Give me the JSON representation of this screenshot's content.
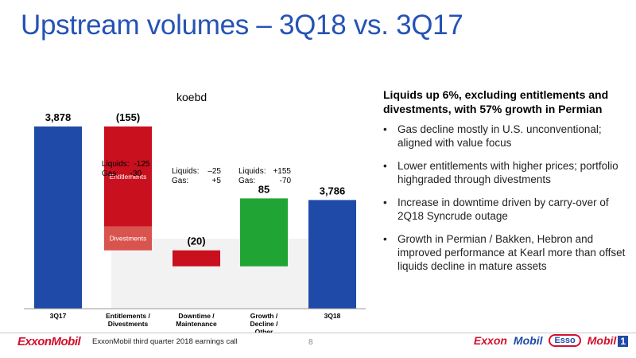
{
  "slide": {
    "title": "Upstream volumes – 3Q18 vs. 3Q17",
    "unit": "koebd"
  },
  "colors": {
    "title": "#2553b5",
    "total_bar": "#1f4aa8",
    "decrease": "#c8101e",
    "decrease_light": "#d9534f",
    "increase": "#20a535"
  },
  "chart_data": {
    "type": "bar",
    "subtype": "waterfall",
    "categories": [
      "3Q17",
      "Entitlements / Divestments",
      "Downtime / Maintenance",
      "Growth / Decline / Other",
      "3Q18"
    ],
    "values": [
      3878,
      -155,
      -20,
      85,
      3786
    ],
    "value_labels": [
      "3,878",
      "(155)",
      "(20)",
      "85",
      "3,786"
    ],
    "segments": [
      {
        "category": "Entitlements / Divestments",
        "label": "Entitlements"
      },
      {
        "category": "Entitlements / Divestments",
        "label": "Divestments"
      }
    ],
    "breakdowns": [
      {
        "category": "Entitlements / Divestments",
        "rows": [
          [
            "Liquids:",
            "-125"
          ],
          [
            "Gas:",
            "-30"
          ]
        ]
      },
      {
        "category": "Downtime / Maintenance",
        "rows": [
          [
            "Liquids:",
            "–25"
          ],
          [
            "Gas:",
            "+5"
          ]
        ]
      },
      {
        "category": "Growth / Decline / Other",
        "rows": [
          [
            "Liquids:",
            "+155"
          ],
          [
            "Gas:",
            "-70"
          ]
        ]
      }
    ],
    "ylabel": "koebd",
    "grid": false
  },
  "side": {
    "heading": "Liquids up 6%, excluding entitlements and divestments, with 57% growth in Permian",
    "bullets": [
      "Gas decline mostly in U.S. unconventional; aligned with value focus",
      "Lower entitlements with higher prices; portfolio highgraded through divestments",
      "Increase in downtime driven by carry-over of 2Q18 Syncrude outage",
      "Growth in Permian / Bakken, Hebron and improved performance at Kearl more than offset liquids decline in mature assets"
    ]
  },
  "footer": {
    "logo": "ExxonMobil",
    "text": "ExxonMobil third quarter 2018 earnings call",
    "page": "8",
    "brands": [
      "Exxon",
      "Mobil",
      "Esso",
      "Mobil",
      "1"
    ]
  }
}
